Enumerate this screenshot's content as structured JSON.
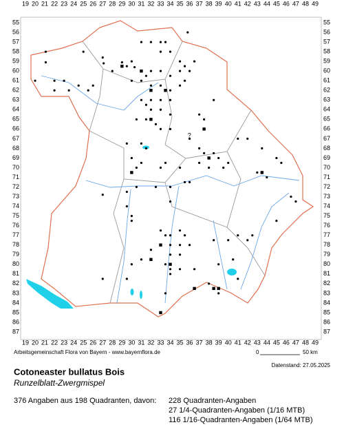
{
  "map": {
    "x_labels": [
      19,
      20,
      21,
      22,
      23,
      24,
      25,
      26,
      27,
      28,
      29,
      30,
      31,
      32,
      33,
      34,
      35,
      36,
      37,
      38,
      39,
      40,
      41,
      42,
      43,
      44,
      45,
      46,
      47,
      48,
      49
    ],
    "y_labels": [
      55,
      56,
      57,
      58,
      59,
      60,
      61,
      62,
      63,
      64,
      65,
      66,
      67,
      68,
      69,
      70,
      71,
      72,
      73,
      74,
      75,
      76,
      77,
      78,
      79,
      80,
      81,
      82,
      83,
      84,
      85,
      86,
      87
    ],
    "annotation": "?",
    "points": [
      [
        21.1,
        58.0
      ],
      [
        21.1,
        59.1
      ],
      [
        25.0,
        58.0
      ],
      [
        27.0,
        58.6
      ],
      [
        27.1,
        59.2
      ],
      [
        29.0,
        59.1
      ],
      [
        29.5,
        59.5
      ],
      [
        30.0,
        59.0
      ],
      [
        30.3,
        59.6
      ],
      [
        31.0,
        57.0
      ],
      [
        32.0,
        57.0
      ],
      [
        33.0,
        57.0
      ],
      [
        33.5,
        57.0
      ],
      [
        33.0,
        58.0
      ],
      [
        34.0,
        58.0
      ],
      [
        35.0,
        59.0
      ],
      [
        35.5,
        59.5
      ],
      [
        36.0,
        60.0
      ],
      [
        36.5,
        59.0
      ],
      [
        35.8,
        56.0
      ],
      [
        28.0,
        60.0
      ],
      [
        31.0,
        60.0
      ],
      [
        31.5,
        60.5
      ],
      [
        32.0,
        60.0
      ],
      [
        33.0,
        60.0
      ],
      [
        34.0,
        60.5
      ],
      [
        35.0,
        60.0
      ],
      [
        35.5,
        61.0
      ],
      [
        20.0,
        61.0
      ],
      [
        22.0,
        61.0
      ],
      [
        22.0,
        62.0
      ],
      [
        23.0,
        61.0
      ],
      [
        23.5,
        62.0
      ],
      [
        24.5,
        61.5
      ],
      [
        25.5,
        62.0
      ],
      [
        26.0,
        61.5
      ],
      [
        30.0,
        61.0
      ],
      [
        31.0,
        61.0
      ],
      [
        32.0,
        61.5
      ],
      [
        33.0,
        61.5
      ],
      [
        34.0,
        62.0
      ],
      [
        35.0,
        61.5
      ],
      [
        31.0,
        63.0
      ],
      [
        31.5,
        63.5
      ],
      [
        32.0,
        63.0
      ],
      [
        33.0,
        63.0
      ],
      [
        34.0,
        63.0
      ],
      [
        32.0,
        64.0
      ],
      [
        33.0,
        64.0
      ],
      [
        34.0,
        64.5
      ],
      [
        30.5,
        65.0
      ],
      [
        31.5,
        65.0
      ],
      [
        32.5,
        65.5
      ],
      [
        33.0,
        66.0
      ],
      [
        34.0,
        66.0
      ],
      [
        37.0,
        64.5
      ],
      [
        37.5,
        65.0
      ],
      [
        38.5,
        63.0
      ],
      [
        36.0,
        67.0
      ],
      [
        37.0,
        68.0
      ],
      [
        37.5,
        68.5
      ],
      [
        38.0,
        69.0
      ],
      [
        38.5,
        68.5
      ],
      [
        39.0,
        69.0
      ],
      [
        37.0,
        69.5
      ],
      [
        38.0,
        70.0
      ],
      [
        39.5,
        70.0
      ],
      [
        40.0,
        69.5
      ],
      [
        41.0,
        67.0
      ],
      [
        42.0,
        67.0
      ],
      [
        43.5,
        68.0
      ],
      [
        45.0,
        69.0
      ],
      [
        45.5,
        69.5
      ],
      [
        29.5,
        67.5
      ],
      [
        31.0,
        67.5
      ],
      [
        31.5,
        68.0
      ],
      [
        30.0,
        69.0
      ],
      [
        31.0,
        69.5
      ],
      [
        30.5,
        70.0
      ],
      [
        33.0,
        70.0
      ],
      [
        33.5,
        69.5
      ],
      [
        35.0,
        70.0
      ],
      [
        44.0,
        71.0
      ],
      [
        43.0,
        70.5
      ],
      [
        27.0,
        72.8
      ],
      [
        29.5,
        72.5
      ],
      [
        30.5,
        72.0
      ],
      [
        32.5,
        72.0
      ],
      [
        34.0,
        72.0
      ],
      [
        35.5,
        71.5
      ],
      [
        36.0,
        71.5
      ],
      [
        34.0,
        73.5
      ],
      [
        29.5,
        74.0
      ],
      [
        30.0,
        75.0
      ],
      [
        30.0,
        75.5
      ],
      [
        45.0,
        75.5
      ],
      [
        46.5,
        73.0
      ],
      [
        47.0,
        73.5
      ],
      [
        33.0,
        76.5
      ],
      [
        33.5,
        77.0
      ],
      [
        34.0,
        77.0
      ],
      [
        35.0,
        76.5
      ],
      [
        35.5,
        77.0
      ],
      [
        33.0,
        78.0
      ],
      [
        34.0,
        78.0
      ],
      [
        35.0,
        78.0
      ],
      [
        36.0,
        78.0
      ],
      [
        38.5,
        77.5
      ],
      [
        40.0,
        77.5
      ],
      [
        41.0,
        77.0
      ],
      [
        42.0,
        77.5
      ],
      [
        42.5,
        77.0
      ],
      [
        32.0,
        78.5
      ],
      [
        34.0,
        79.0
      ],
      [
        35.0,
        79.0
      ],
      [
        31.0,
        79.5
      ],
      [
        30.0,
        80.0
      ],
      [
        33.5,
        80.0
      ],
      [
        34.0,
        80.5
      ],
      [
        34.0,
        81.0
      ],
      [
        35.0,
        80.5
      ],
      [
        36.5,
        80.5
      ],
      [
        39.0,
        80.0
      ],
      [
        40.5,
        79.5
      ],
      [
        27.0,
        81.5
      ],
      [
        29.5,
        81.5
      ],
      [
        33.5,
        83.0
      ],
      [
        38.0,
        82.0
      ],
      [
        38.5,
        82.5
      ],
      [
        39.0,
        83.0
      ],
      [
        41.0,
        81.5
      ],
      [
        33.0,
        85.0
      ]
    ],
    "squares": [
      [
        29.0,
        59.5
      ],
      [
        31.0,
        60.0
      ],
      [
        32.0,
        62.0
      ],
      [
        33.5,
        62.0
      ],
      [
        32.0,
        65.0
      ],
      [
        37.5,
        66.0
      ],
      [
        38.0,
        69.0
      ],
      [
        30.0,
        70.5
      ],
      [
        33.0,
        78.0
      ],
      [
        32.0,
        79.5
      ],
      [
        34.0,
        80.0
      ],
      [
        38.5,
        82.5
      ],
      [
        39.0,
        82.5
      ],
      [
        33.0,
        85.0
      ],
      [
        43.5,
        70.5
      ],
      [
        36.5,
        82.5
      ]
    ]
  },
  "footer": {
    "credit": "Arbeitsgemeinschaft Flora von Bayern - www.bayernflora.de",
    "scale_start": "0",
    "scale_end": "50 km",
    "date": "Datenstand: 27.05.2025"
  },
  "species": {
    "name": "Cotoneaster bullatus Bois",
    "common_name": "Runzelblatt-Zwergmispel"
  },
  "summary": {
    "total": "376 Angaben aus 198 Quadranten, davon:",
    "lines": [
      "228 Quadranten-Angaben",
      "27 1/4-Quadranten-Angaben (1/16 MTB)",
      "116 1/16-Quadranten-Angaben (1/64 MTB)"
    ]
  }
}
